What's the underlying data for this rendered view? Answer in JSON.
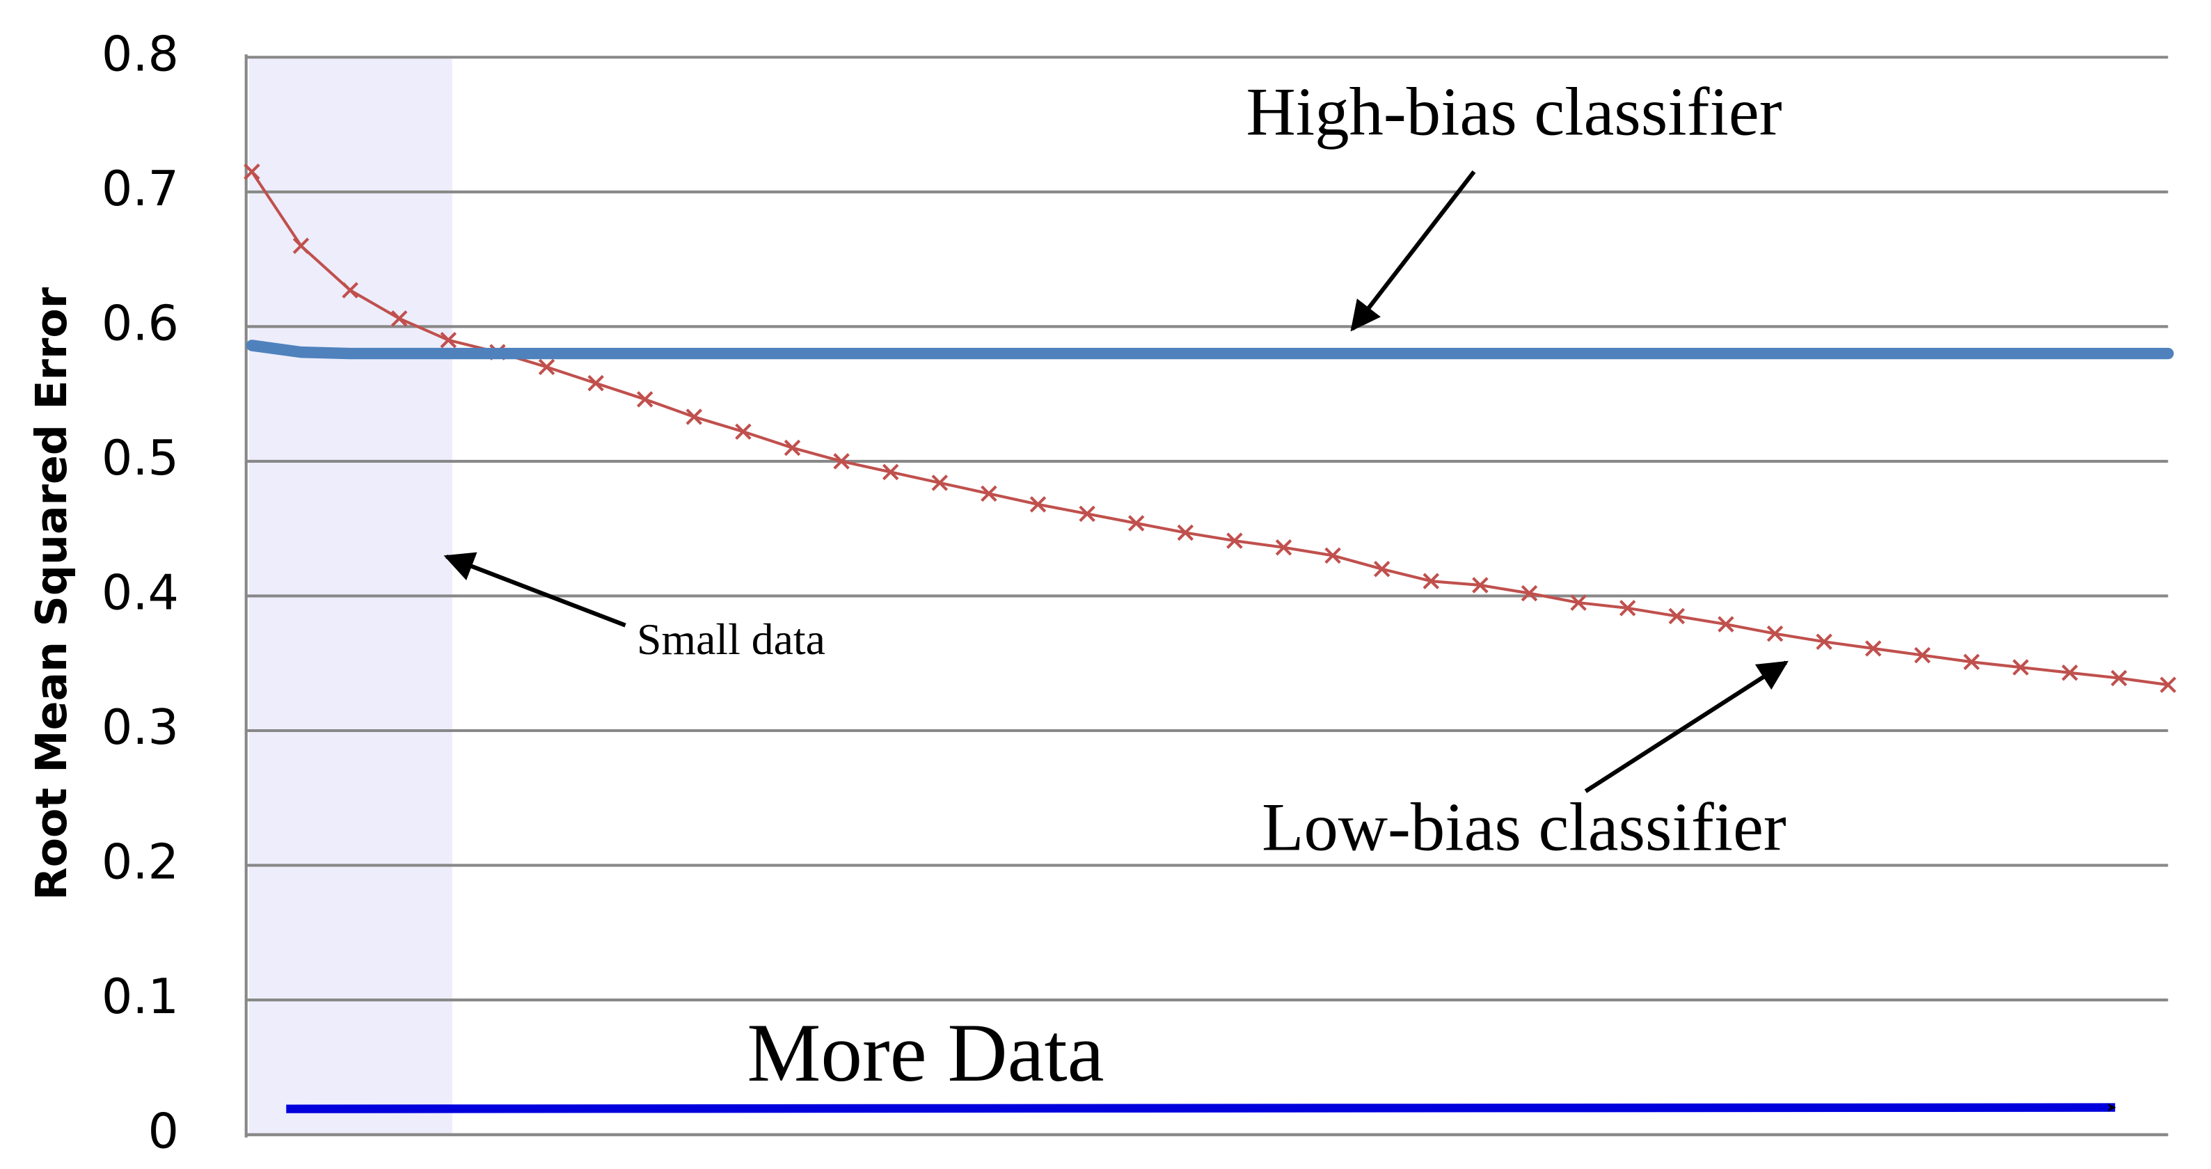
{
  "chart_data": {
    "type": "line",
    "ylabel": "Root Mean Squared Error",
    "categories": [
      null,
      null,
      null,
      null,
      null,
      null,
      null,
      null,
      null,
      null,
      null,
      null,
      null,
      null,
      null,
      null,
      null,
      null,
      null,
      null,
      null,
      null,
      null,
      null,
      null,
      null,
      null,
      null,
      null,
      null,
      null,
      null,
      null,
      null,
      null,
      null,
      null,
      null,
      null,
      null
    ],
    "series": [
      {
        "name": "High-bias classifier",
        "color": "#4f81bd",
        "marker": "none",
        "values": [
          0.586,
          0.581,
          0.58,
          0.58,
          0.58,
          0.58,
          0.58,
          0.58,
          0.58,
          0.58,
          0.58,
          0.58,
          0.58,
          0.58,
          0.58,
          0.58,
          0.58,
          0.58,
          0.58,
          0.58,
          0.58,
          0.58,
          0.58,
          0.58,
          0.58,
          0.58,
          0.58,
          0.58,
          0.58,
          0.58,
          0.58,
          0.58,
          0.58,
          0.58,
          0.58,
          0.58,
          0.58,
          0.58,
          0.58,
          0.58
        ]
      },
      {
        "name": "Low-bias classifier",
        "color": "#c0504d",
        "marker": "x",
        "values": [
          0.715,
          0.66,
          0.627,
          0.606,
          0.59,
          0.581,
          0.57,
          0.558,
          0.546,
          0.533,
          0.522,
          0.51,
          0.5,
          0.492,
          0.484,
          0.476,
          0.468,
          0.461,
          0.454,
          0.447,
          0.441,
          0.436,
          0.43,
          0.42,
          0.411,
          0.408,
          0.402,
          0.395,
          0.391,
          0.385,
          0.379,
          0.372,
          0.366,
          0.361,
          0.356,
          0.351,
          0.347,
          0.343,
          0.339,
          0.334
        ]
      }
    ],
    "annotations": [
      "Small data",
      "More Data"
    ],
    "ylim": [
      0,
      0.8
    ],
    "yticks": [
      0,
      0.1,
      0.2,
      0.3,
      0.4,
      0.5,
      0.6,
      0.7,
      0.8
    ],
    "grid": true
  }
}
